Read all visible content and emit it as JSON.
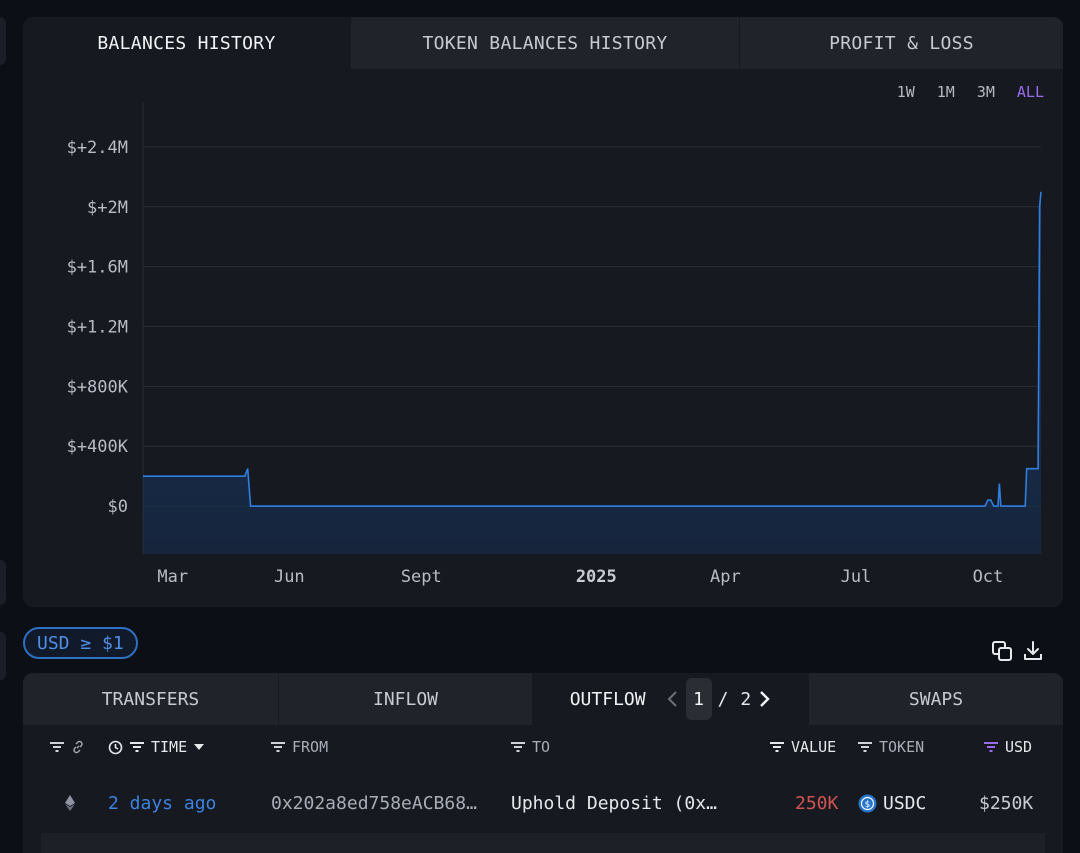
{
  "tabs": [
    "BALANCES HISTORY",
    "TOKEN BALANCES HISTORY",
    "PROFIT & LOSS"
  ],
  "ranges": [
    "1W",
    "1M",
    "3M",
    "ALL"
  ],
  "active_range": "ALL",
  "colors": {
    "line": "#2f7fe0",
    "active_range": "#9a6cf0",
    "negative_value": "#d05454",
    "link": "#3d83e0"
  },
  "chart_data": {
    "type": "area",
    "title": "",
    "xlabel": "",
    "ylabel": "",
    "x_ticks": [
      "Mar",
      "Jun",
      "Sept",
      "2025",
      "Apr",
      "Jul",
      "Oct"
    ],
    "y_ticks": [
      "$+2.4M",
      "$+2M",
      "$+1.6M",
      "$+1.2M",
      "$+800K",
      "$+400K",
      "$0"
    ],
    "ylim": [
      -320000,
      2700000
    ],
    "grid": true,
    "series": [
      {
        "x": [
          "2024-02-20",
          "2024-05-01",
          "2024-05-03",
          "2024-05-05",
          "2024-10-01",
          "2025-03-01",
          "2025-09-29",
          "2025-10-01",
          "2025-10-03",
          "2025-10-05",
          "2025-10-08",
          "2025-10-09",
          "2025-10-10",
          "2025-10-11",
          "2025-10-27",
          "2025-10-28",
          "2025-11-05",
          "2025-11-06",
          "2025-11-07"
        ],
        "values": [
          200000,
          200000,
          250000,
          0,
          0,
          0,
          0,
          40000,
          40000,
          0,
          0,
          150000,
          0,
          0,
          0,
          250000,
          250000,
          2000000,
          2100000
        ]
      }
    ]
  },
  "filter_pill": "USD ≥ $1",
  "table_tabs": [
    "TRANSFERS",
    "INFLOW",
    "OUTFLOW",
    "SWAPS"
  ],
  "active_table_tab": "OUTFLOW",
  "pager": {
    "current": "1",
    "separator": "/",
    "total": "2"
  },
  "columns": {
    "time": "TIME",
    "from": "FROM",
    "to": "TO",
    "value": "VALUE",
    "token": "TOKEN",
    "usd": "USD"
  },
  "rows": [
    {
      "time": "2 days ago",
      "from": "0x202a8ed758eACB68…",
      "to": "Uphold Deposit (0x…",
      "value": "250K",
      "token": "USDC",
      "usd": "$250K"
    }
  ]
}
